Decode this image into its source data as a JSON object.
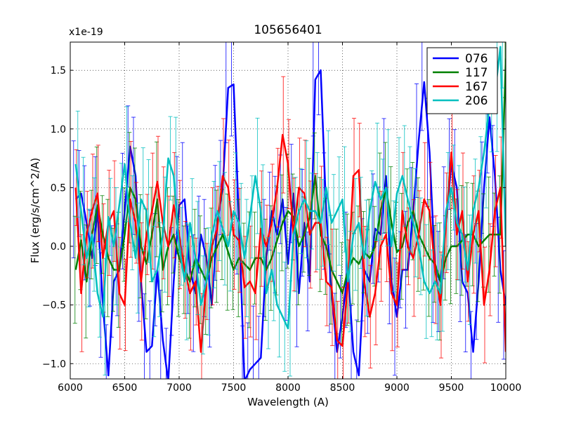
{
  "chart_data": {
    "type": "line",
    "title": "105656401",
    "xlabel": "Wavelength (A)",
    "ylabel": "Flux (erg/s/cm^2/A)",
    "y_scale_label": "x1e-19",
    "xlim": [
      6000,
      10000
    ],
    "ylim": [
      -1.13,
      1.74
    ],
    "xticks": [
      6000,
      6500,
      7000,
      7500,
      8000,
      8500,
      9000,
      9500,
      10000
    ],
    "xtick_labels": [
      "6000",
      "6500",
      "7000",
      "7500",
      "8000",
      "8500",
      "9000",
      "9500",
      "10000"
    ],
    "yticks": [
      -1.0,
      -0.5,
      0.0,
      0.5,
      1.0,
      1.5
    ],
    "ytick_labels": [
      "−1.0",
      "−0.5",
      "0.0",
      "0.5",
      "1.0",
      "1.5"
    ],
    "grid": true,
    "legend_position": "top-right",
    "x": [
      6050,
      6100,
      6150,
      6200,
      6250,
      6300,
      6350,
      6400,
      6450,
      6500,
      6550,
      6600,
      6650,
      6700,
      6750,
      6800,
      6850,
      6900,
      6950,
      7000,
      7050,
      7100,
      7150,
      7200,
      7250,
      7300,
      7350,
      7400,
      7450,
      7500,
      7550,
      7600,
      7650,
      7700,
      7750,
      7800,
      7850,
      7900,
      7950,
      8000,
      8050,
      8100,
      8150,
      8200,
      8250,
      8300,
      8350,
      8400,
      8450,
      8500,
      8550,
      8600,
      8650,
      8700,
      8750,
      8800,
      8850,
      8900,
      8950,
      9000,
      9050,
      9100,
      9150,
      9200,
      9250,
      9300,
      9350,
      9400,
      9450,
      9500,
      9550,
      9600,
      9650,
      9700,
      9750,
      9800,
      9850,
      9900,
      9950,
      10000
    ],
    "series": [
      {
        "name": "076",
        "color": "#0000ff",
        "values": [
          0.4,
          0.45,
          0.2,
          -0.1,
          0.3,
          -0.5,
          -1.1,
          -0.3,
          -0.2,
          0.3,
          0.85,
          0.6,
          -0.3,
          -0.9,
          -0.85,
          -0.2,
          -0.8,
          -1.15,
          -0.3,
          0.35,
          0.4,
          -0.2,
          -0.4,
          0.1,
          -0.1,
          -0.5,
          0.2,
          0.5,
          1.35,
          1.38,
          0.2,
          -1.15,
          -1.05,
          -1.0,
          -0.95,
          -0.1,
          0.3,
          0.1,
          0.4,
          -0.15,
          0.45,
          -0.4,
          0.2,
          -0.3,
          1.42,
          1.5,
          0.3,
          -0.4,
          -0.9,
          -0.6,
          -0.2,
          -0.9,
          -1.1,
          -0.2,
          -0.3,
          0.15,
          0.1,
          0.6,
          -0.3,
          -0.6,
          -0.2,
          -0.2,
          0.3,
          0.9,
          1.4,
          0.8,
          -0.2,
          -0.3,
          0.2,
          0.7,
          0.5,
          -0.3,
          -0.4,
          -0.9,
          -0.3,
          0.5,
          1.1,
          0.6,
          -0.2,
          -0.5
        ]
      },
      {
        "name": "117",
        "color": "#008000",
        "values": [
          -0.2,
          0.05,
          -0.3,
          0.1,
          0.35,
          0.1,
          -0.1,
          -0.2,
          -0.2,
          0.1,
          0.5,
          0.4,
          0.0,
          -0.15,
          0.1,
          0.4,
          -0.2,
          0.0,
          0.1,
          -0.1,
          -0.2,
          -0.3,
          -0.1,
          -0.2,
          -0.3,
          -0.1,
          0.0,
          0.1,
          -0.05,
          -0.2,
          -0.1,
          -0.15,
          -0.2,
          -0.1,
          -0.1,
          -0.2,
          -0.1,
          0.05,
          0.2,
          0.3,
          0.25,
          0.0,
          0.1,
          0.25,
          0.6,
          0.1,
          0.0,
          -0.2,
          -0.3,
          -0.4,
          -0.2,
          -0.1,
          -0.15,
          -0.05,
          -0.1,
          0.0,
          0.3,
          0.5,
          0.2,
          -0.05,
          0.0,
          0.2,
          0.3,
          0.1,
          0.0,
          -0.1,
          -0.15,
          -0.3,
          -0.1,
          0.0,
          0.0,
          0.05,
          0.1,
          0.1,
          0.0,
          0.05,
          0.1,
          0.1,
          0.1,
          1.6
        ]
      },
      {
        "name": "167",
        "color": "#ff0000",
        "values": [
          0.5,
          -0.4,
          0.1,
          0.3,
          0.45,
          -0.1,
          0.2,
          0.3,
          -0.4,
          -0.5,
          0.4,
          0.2,
          -0.3,
          0.1,
          0.3,
          0.55,
          0.2,
          0.0,
          0.35,
          0.1,
          -0.2,
          -0.4,
          -0.3,
          -0.9,
          -0.3,
          0.0,
          0.15,
          0.6,
          0.5,
          0.1,
          0.05,
          -0.35,
          -0.3,
          -0.4,
          0.15,
          0.0,
          0.2,
          0.5,
          0.95,
          0.7,
          0.1,
          0.5,
          0.45,
          0.1,
          0.2,
          0.2,
          -0.3,
          -0.35,
          -0.8,
          -0.85,
          -0.3,
          0.6,
          0.65,
          -0.3,
          -0.6,
          -0.4,
          0.0,
          0.1,
          -0.4,
          -0.5,
          0.3,
          0.0,
          -0.1,
          0.1,
          0.4,
          0.3,
          -0.2,
          -0.5,
          0.2,
          0.8,
          0.1,
          0.3,
          -0.3,
          0.1,
          0.3,
          -0.5,
          -0.2,
          0.3,
          0.5,
          -0.9
        ]
      },
      {
        "name": "206",
        "color": "#00bfbf",
        "values": [
          0.7,
          0.3,
          -0.1,
          0.1,
          -0.4,
          -0.6,
          0.25,
          0.0,
          0.35,
          0.7,
          0.2,
          -0.1,
          0.4,
          0.3,
          -0.3,
          -0.2,
          0.1,
          0.75,
          0.6,
          0.0,
          -0.3,
          0.2,
          -0.1,
          -0.5,
          -0.3,
          0.1,
          0.3,
          0.15,
          0.0,
          0.3,
          0.2,
          -0.1,
          0.25,
          0.6,
          0.3,
          -0.4,
          -0.2,
          -0.5,
          -0.6,
          -0.7,
          0.1,
          0.3,
          0.4,
          0.3,
          0.3,
          0.2,
          0.5,
          0.2,
          0.3,
          0.4,
          -0.3,
          0.1,
          0.2,
          -0.1,
          0.3,
          0.55,
          0.4,
          0.5,
          0.0,
          0.45,
          0.6,
          0.4,
          0.2,
          0.0,
          -0.3,
          -0.4,
          -0.3,
          -0.4,
          0.3,
          0.5,
          0.2,
          0.1,
          -0.2,
          0.3,
          0.5,
          0.8,
          1.2,
          1.3,
          1.7,
          0.0
        ]
      }
    ]
  }
}
